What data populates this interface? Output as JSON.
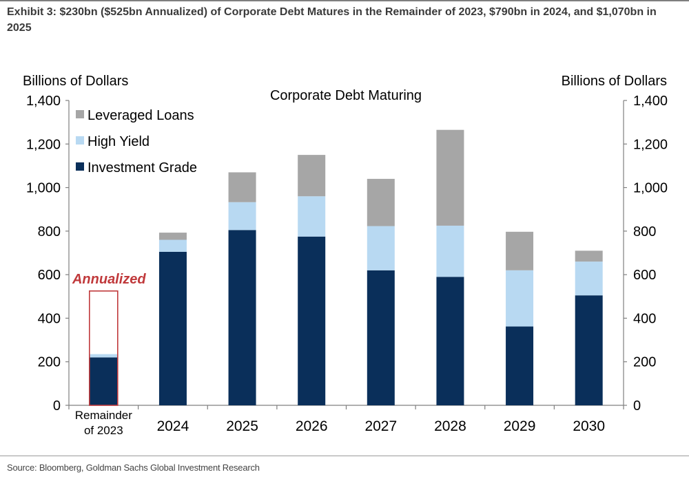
{
  "title": "Exhibit 3: $230bn ($525bn Annualized) of Corporate Debt Matures in the Remainder of 2023, $790bn in 2024, and $1,070bn in 2025",
  "source": "Source: Bloomberg, Goldman Sachs Global Investment Research",
  "chart_data": {
    "type": "bar",
    "stacked": true,
    "title": "Corporate Debt Maturing",
    "ylabel_left": "Billions of Dollars",
    "ylabel_right": "Billions of Dollars",
    "ylim": [
      0,
      1400
    ],
    "yticks": [
      0,
      200,
      400,
      600,
      800,
      1000,
      1200,
      1400
    ],
    "ytick_labels": [
      "0",
      "200",
      "400",
      "600",
      "800",
      "1,000",
      "1,200",
      "1,400"
    ],
    "categories": [
      "Remainder of 2023",
      "2024",
      "2025",
      "2026",
      "2027",
      "2028",
      "2029",
      "2030"
    ],
    "category_lines": [
      [
        "Remainder",
        "of 2023"
      ],
      [
        "2024"
      ],
      [
        "2025"
      ],
      [
        "2026"
      ],
      [
        "2027"
      ],
      [
        "2028"
      ],
      [
        "2029"
      ],
      [
        "2030"
      ]
    ],
    "series": [
      {
        "name": "Investment Grade",
        "color": "#0a2f5a",
        "values": [
          220,
          705,
          805,
          775,
          620,
          590,
          362,
          505
        ]
      },
      {
        "name": "High Yield",
        "color": "#b8d9f2",
        "values": [
          15,
          55,
          128,
          185,
          203,
          235,
          258,
          155
        ]
      },
      {
        "name": "Leveraged Loans",
        "color": "#a6a6a6",
        "values": [
          0,
          33,
          137,
          190,
          217,
          440,
          177,
          50
        ]
      }
    ],
    "legend_order": [
      "Leveraged Loans",
      "High Yield",
      "Investment Grade"
    ],
    "legend_position": "top-left",
    "annotation": {
      "label": "Annualized",
      "category": "Remainder of 2023",
      "value": 525,
      "color": "#c0393b"
    }
  }
}
